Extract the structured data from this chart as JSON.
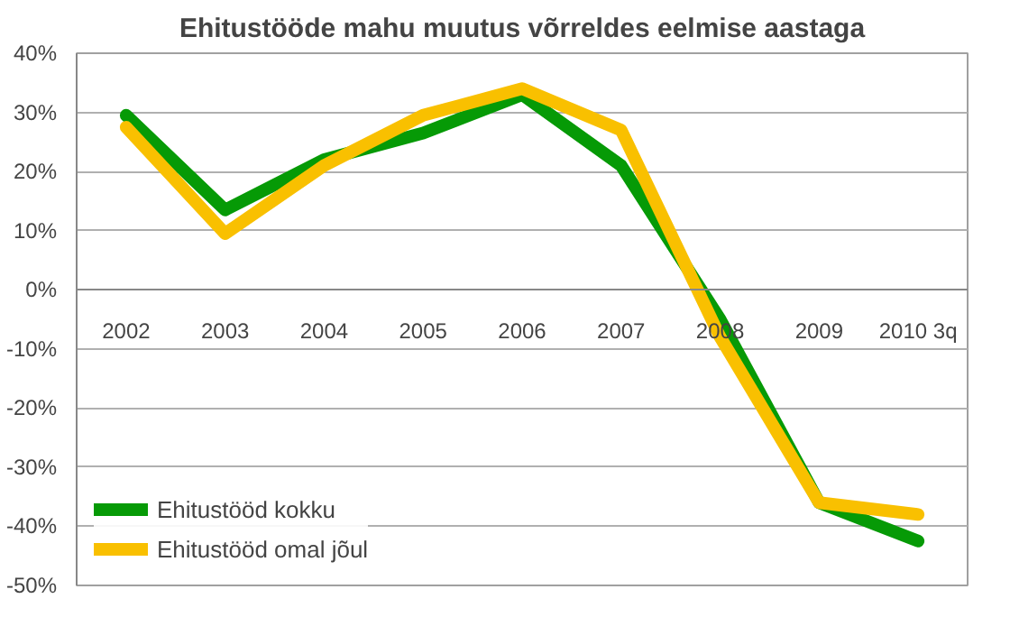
{
  "chart_data": {
    "type": "line",
    "title": "Ehitustööde mahu muutus võrreldes eelmise aastaga",
    "categories": [
      "2002",
      "2003",
      "2004",
      "2005",
      "2006",
      "2007",
      "2008",
      "2009",
      "2010 3q"
    ],
    "series": [
      {
        "name": "Ehitustööd kokku",
        "color": "#069a06",
        "values": [
          29.5,
          13.5,
          22,
          26.5,
          33,
          21,
          -5,
          -36,
          -42.5
        ]
      },
      {
        "name": "Ehitustööd omal jõul",
        "color": "#f9c000",
        "values": [
          27.5,
          9.5,
          21,
          29.5,
          34,
          27,
          -8,
          -36,
          -38
        ]
      }
    ],
    "ylim": [
      -50,
      40
    ],
    "yticks": [
      {
        "value": -50,
        "label": "-50%"
      },
      {
        "value": -40,
        "label": "-40%"
      },
      {
        "value": -30,
        "label": "-30%"
      },
      {
        "value": -20,
        "label": "-20%"
      },
      {
        "value": -10,
        "label": "-10%"
      },
      {
        "value": 0,
        "label": "0%"
      },
      {
        "value": 10,
        "label": "10%"
      },
      {
        "value": 20,
        "label": "20%"
      },
      {
        "value": 30,
        "label": "30%"
      },
      {
        "value": 40,
        "label": "40%"
      }
    ],
    "grid": "y",
    "legend": "bottom left",
    "marker": "none",
    "line_style": "solid"
  }
}
